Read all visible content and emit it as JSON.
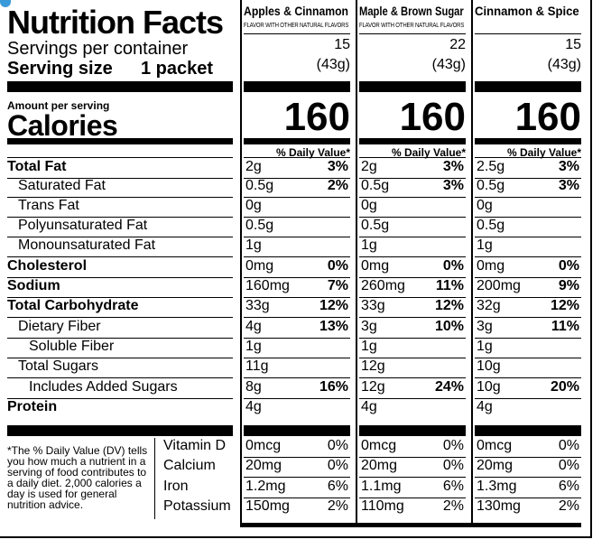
{
  "title": "Nutrition Facts",
  "servings_label": "Servings per container",
  "serving_size_label": "Serving size",
  "serving_size_value": "1 packet",
  "amount_per_serving": "Amount per serving",
  "calories_label": "Calories",
  "dv_header": "% Daily Value*",
  "products": [
    {
      "name": "Apples & Cinnamon",
      "subtitle": "FLAVOR WITH OTHER NATURAL FLAVORS",
      "servings": "15",
      "serving_weight": "(43g)",
      "calories": "160",
      "nutrients": [
        {
          "amount": "2g",
          "dv": "3%"
        },
        {
          "amount": "0.5g",
          "dv": "2%"
        },
        {
          "amount": "0g",
          "dv": ""
        },
        {
          "amount": "0.5g",
          "dv": ""
        },
        {
          "amount": "1g",
          "dv": ""
        },
        {
          "amount": "0mg",
          "dv": "0%"
        },
        {
          "amount": "160mg",
          "dv": "7%"
        },
        {
          "amount": "33g",
          "dv": "12%"
        },
        {
          "amount": "4g",
          "dv": "13%"
        },
        {
          "amount": "1g",
          "dv": ""
        },
        {
          "amount": "11g",
          "dv": ""
        },
        {
          "amount": "8g",
          "dv": "16%"
        },
        {
          "amount": "4g",
          "dv": ""
        }
      ],
      "vitamins": [
        {
          "amount": "0mcg",
          "dv": "0%"
        },
        {
          "amount": "20mg",
          "dv": "0%"
        },
        {
          "amount": "1.2mg",
          "dv": "6%"
        },
        {
          "amount": "150mg",
          "dv": "2%"
        }
      ]
    },
    {
      "name": "Maple & Brown Sugar",
      "subtitle": "FLAVOR WITH OTHER NATURAL FLAVORS",
      "servings": "22",
      "serving_weight": "(43g)",
      "calories": "160",
      "nutrients": [
        {
          "amount": "2g",
          "dv": "3%"
        },
        {
          "amount": "0.5g",
          "dv": "3%"
        },
        {
          "amount": "0g",
          "dv": ""
        },
        {
          "amount": "0.5g",
          "dv": ""
        },
        {
          "amount": "1g",
          "dv": ""
        },
        {
          "amount": "0mg",
          "dv": "0%"
        },
        {
          "amount": "260mg",
          "dv": "11%"
        },
        {
          "amount": "33g",
          "dv": "12%"
        },
        {
          "amount": "3g",
          "dv": "10%"
        },
        {
          "amount": "1g",
          "dv": ""
        },
        {
          "amount": "12g",
          "dv": ""
        },
        {
          "amount": "12g",
          "dv": "24%"
        },
        {
          "amount": "4g",
          "dv": ""
        }
      ],
      "vitamins": [
        {
          "amount": "0mcg",
          "dv": "0%"
        },
        {
          "amount": "20mg",
          "dv": "0%"
        },
        {
          "amount": "1.1mg",
          "dv": "6%"
        },
        {
          "amount": "110mg",
          "dv": "2%"
        }
      ]
    },
    {
      "name": "Cinnamon & Spice",
      "subtitle": "",
      "servings": "15",
      "serving_weight": "(43g)",
      "calories": "160",
      "nutrients": [
        {
          "amount": "2.5g",
          "dv": "3%"
        },
        {
          "amount": "0.5g",
          "dv": "3%"
        },
        {
          "amount": "0g",
          "dv": ""
        },
        {
          "amount": "0.5g",
          "dv": ""
        },
        {
          "amount": "1g",
          "dv": ""
        },
        {
          "amount": "0mg",
          "dv": "0%"
        },
        {
          "amount": "200mg",
          "dv": "9%"
        },
        {
          "amount": "32g",
          "dv": "12%"
        },
        {
          "amount": "3g",
          "dv": "11%"
        },
        {
          "amount": "1g",
          "dv": ""
        },
        {
          "amount": "10g",
          "dv": ""
        },
        {
          "amount": "10g",
          "dv": "20%"
        },
        {
          "amount": "4g",
          "dv": ""
        }
      ],
      "vitamins": [
        {
          "amount": "0mcg",
          "dv": "0%"
        },
        {
          "amount": "20mg",
          "dv": "0%"
        },
        {
          "amount": "1.3mg",
          "dv": "6%"
        },
        {
          "amount": "130mg",
          "dv": "2%"
        }
      ]
    }
  ],
  "nutrient_names": [
    "Total Fat",
    "Saturated Fat",
    "Trans Fat",
    "Polyunsaturated Fat",
    "Monounsaturated Fat",
    "Cholesterol",
    "Sodium",
    "Total Carbohydrate",
    "Dietary Fiber",
    "Soluble Fiber",
    "Total Sugars",
    "Includes Added Sugars",
    "Protein"
  ],
  "vitamin_names": [
    "Vitamin D",
    "Calcium",
    "Iron",
    "Potassium"
  ],
  "footnote": "*The % Daily Value (DV) tells you how much a nutrient in a serving of food contributes to a daily diet. 2,000 calories a day is used for general nutrition advice."
}
